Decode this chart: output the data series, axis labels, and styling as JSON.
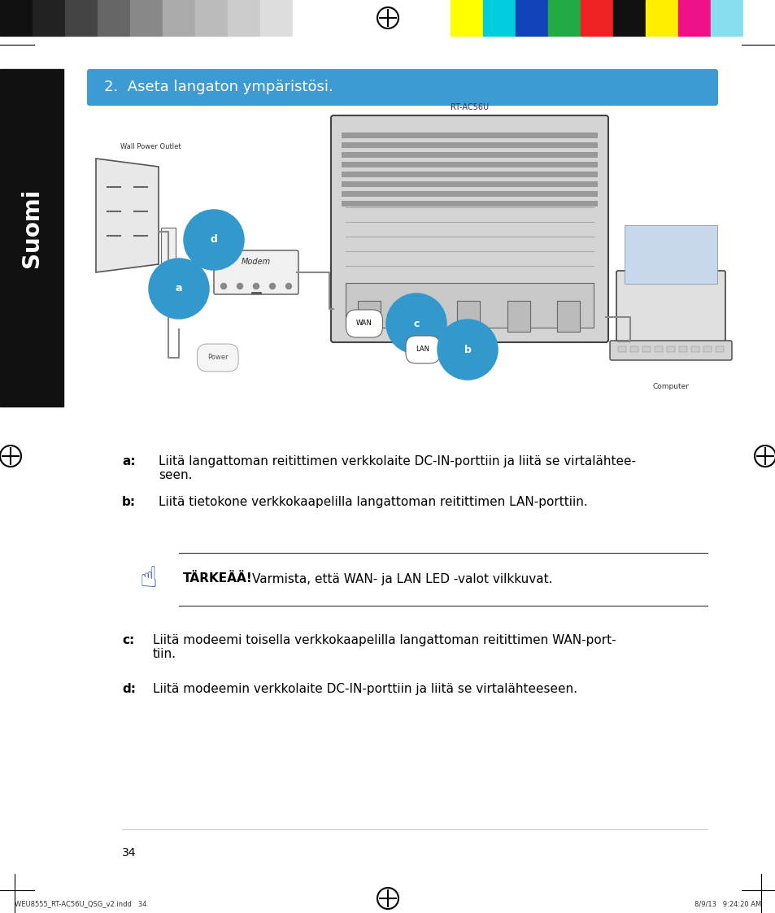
{
  "bg_color": "#ffffff",
  "page_width": 9.54,
  "page_height": 11.23,
  "header_bar_color": "#3d9bd4",
  "header_bar_text": "2.  Aseta langaton ympäristösi.",
  "header_bar_text_color": "#ffffff",
  "sidebar_color": "#111111",
  "sidebar_text": "Suomi",
  "sidebar_text_color": "#ffffff",
  "diagram_caption_wall": "Wall Power Outlet",
  "diagram_caption_router": "RT-AC56U",
  "diagram_caption_computer": "Computer",
  "label_color": "#3399cc",
  "important_bold": "TÄRKEÄÄ!",
  "important_text": "Varmista, että WAN- ja LAN LED -valot vilkkuvat.",
  "page_number": "34",
  "footer_left": "WEU8555_RT-AC56U_QSG_v2.indd   34",
  "footer_right": "8/9/13   9:24:20 AM",
  "color_bar_colors": [
    "#ffff00",
    "#00ccdd",
    "#1144bb",
    "#22aa44",
    "#ee2222",
    "#111111",
    "#ffee00",
    "#ee1188",
    "#88ddee",
    "#ffffff"
  ],
  "gray_bar_colors": [
    "#111111",
    "#222222",
    "#444444",
    "#666666",
    "#888888",
    "#aaaaaa",
    "#bbbbbb",
    "#cccccc",
    "#dddddd",
    "#ffffff"
  ]
}
